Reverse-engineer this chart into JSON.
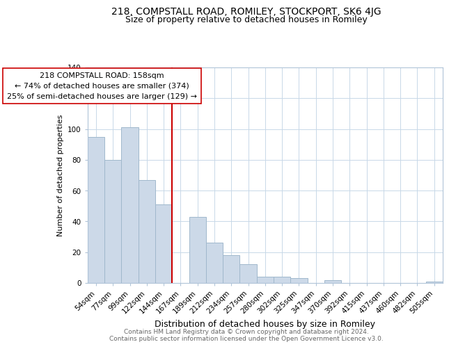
{
  "title1": "218, COMPSTALL ROAD, ROMILEY, STOCKPORT, SK6 4JG",
  "title2": "Size of property relative to detached houses in Romiley",
  "xlabel": "Distribution of detached houses by size in Romiley",
  "ylabel": "Number of detached properties",
  "bar_labels": [
    "54sqm",
    "77sqm",
    "99sqm",
    "122sqm",
    "144sqm",
    "167sqm",
    "189sqm",
    "212sqm",
    "234sqm",
    "257sqm",
    "280sqm",
    "302sqm",
    "325sqm",
    "347sqm",
    "370sqm",
    "392sqm",
    "415sqm",
    "437sqm",
    "460sqm",
    "482sqm",
    "505sqm"
  ],
  "bar_values": [
    95,
    80,
    101,
    67,
    51,
    0,
    43,
    26,
    18,
    12,
    4,
    4,
    3,
    0,
    2,
    0,
    0,
    0,
    0,
    0,
    1
  ],
  "bar_color": "#ccd9e8",
  "bar_edge_color": "#a0b8cc",
  "vline_color": "#cc0000",
  "annotation_title": "218 COMPSTALL ROAD: 158sqm",
  "annotation_line1": "← 74% of detached houses are smaller (374)",
  "annotation_line2": "25% of semi-detached houses are larger (129) →",
  "annotation_box_color": "#ffffff",
  "annotation_box_edge": "#cc0000",
  "ylim": [
    0,
    140
  ],
  "yticks": [
    0,
    20,
    40,
    60,
    80,
    100,
    120,
    140
  ],
  "footer1": "Contains HM Land Registry data © Crown copyright and database right 2024.",
  "footer2": "Contains public sector information licensed under the Open Government Licence v3.0.",
  "title1_fontsize": 10,
  "title2_fontsize": 9,
  "xlabel_fontsize": 9,
  "ylabel_fontsize": 8,
  "tick_fontsize": 7.5,
  "annotation_fontsize": 8,
  "footer_fontsize": 6.5
}
